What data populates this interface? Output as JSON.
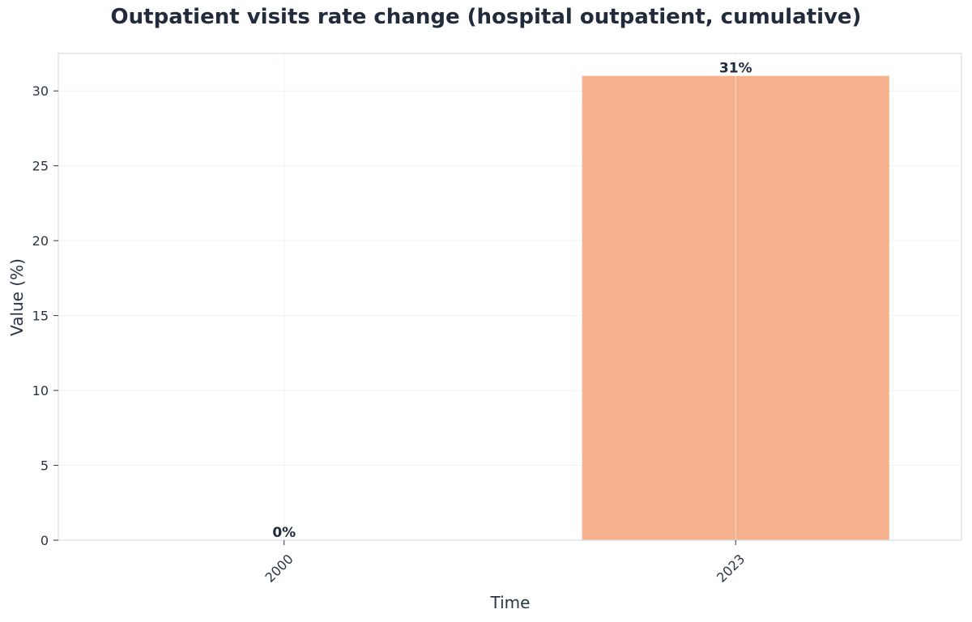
{
  "chart_data": {
    "type": "bar",
    "title": "Outpatient visits rate change (hospital outpatient, cumulative)",
    "xlabel": "Time",
    "ylabel": "Value (%)",
    "categories": [
      "2000",
      "2023"
    ],
    "values": [
      0,
      31
    ],
    "data_labels": [
      "0%",
      "31%"
    ],
    "ylim": [
      0,
      32.5
    ],
    "yticks": [
      0,
      5,
      10,
      15,
      20,
      25,
      30
    ],
    "grid": true,
    "bar_color": "#f6b08c",
    "frame_color": "#d6dee3",
    "grid_color": "#eef2f4"
  }
}
